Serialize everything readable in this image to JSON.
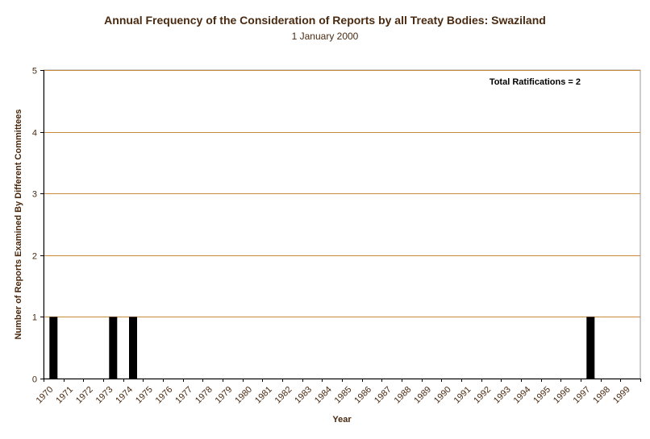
{
  "chart_data": {
    "type": "bar",
    "title": "Annual Frequency of the Consideration of Reports by all Treaty Bodies: Swaziland",
    "subtitle": "1 January 2000",
    "xlabel": "Year",
    "ylabel": "Number of Reports Examined By Different Committees",
    "ylim": [
      0,
      5
    ],
    "yticks": [
      "0",
      "1",
      "2",
      "3",
      "4",
      "5"
    ],
    "grid": true,
    "annotation": "Total Ratifications = 2",
    "categories": [
      "1970",
      "1971",
      "1972",
      "1973",
      "1974",
      "1975",
      "1976",
      "1977",
      "1978",
      "1979",
      "1980",
      "1981",
      "1982",
      "1983",
      "1984",
      "1985",
      "1986",
      "1987",
      "1988",
      "1989",
      "1990",
      "1991",
      "1992",
      "1993",
      "1994",
      "1995",
      "1996",
      "1997",
      "1998",
      "1999"
    ],
    "values": [
      1,
      0,
      0,
      1,
      1,
      0,
      0,
      0,
      0,
      0,
      0,
      0,
      0,
      0,
      0,
      0,
      0,
      0,
      0,
      0,
      0,
      0,
      0,
      0,
      0,
      0,
      0,
      1,
      0,
      0
    ],
    "colors": {
      "bar": "#000000",
      "grid": "#c58a3a",
      "axis": "#000000",
      "text": "#4a2a10"
    }
  }
}
